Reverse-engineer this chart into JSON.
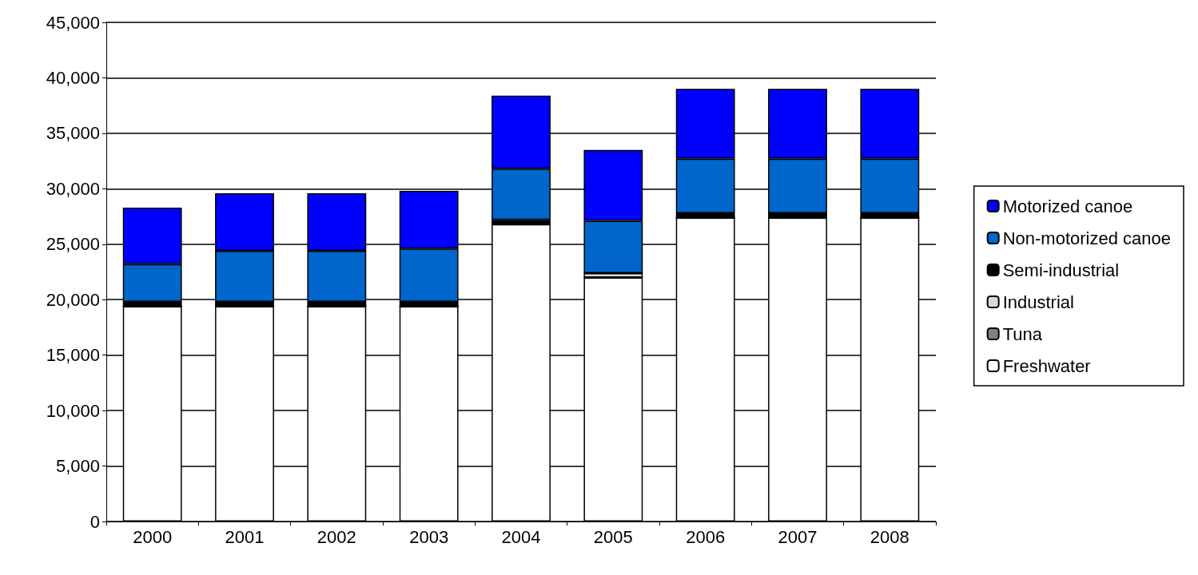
{
  "chart_data": {
    "type": "bar",
    "stacked": true,
    "categories": [
      "2000",
      "2001",
      "2002",
      "2003",
      "2004",
      "2005",
      "2006",
      "2007",
      "2008"
    ],
    "series": [
      {
        "name": "Freshwater",
        "color": "#ffffff",
        "values": [
          19400,
          19400,
          19400,
          19400,
          26800,
          22000,
          27400,
          27400,
          27400
        ]
      },
      {
        "name": "Tuna",
        "color": "#808080",
        "values": [
          0,
          0,
          0,
          0,
          0,
          0,
          0,
          0,
          0
        ]
      },
      {
        "name": "Industrial",
        "color": "#d9d9d9",
        "values": [
          0,
          0,
          0,
          0,
          0,
          400,
          0,
          0,
          0
        ]
      },
      {
        "name": "Semi-industrial",
        "color": "#000000",
        "values": [
          400,
          400,
          400,
          400,
          400,
          0,
          400,
          400,
          400
        ]
      },
      {
        "name": "Non-motorized canoe",
        "color": "#0066cc",
        "values": [
          3400,
          4600,
          4600,
          4800,
          4600,
          4700,
          4900,
          4900,
          4900
        ]
      },
      {
        "name": "Motorized canoe",
        "color": "#0000ff",
        "values": [
          5100,
          5200,
          5200,
          5200,
          6600,
          6400,
          6300,
          6300,
          6300
        ]
      }
    ],
    "ylim": [
      0,
      45000
    ],
    "yticks": [
      0,
      {
        "value": 5000,
        "label": "5,000"
      },
      {
        "value": 10000,
        "label": "10,000"
      },
      {
        "value": 15000,
        "label": "15,000"
      },
      {
        "value": 20000,
        "label": "20,000"
      },
      {
        "value": 25000,
        "label": "25,000"
      },
      {
        "value": 30000,
        "label": "30,000"
      },
      {
        "value": 35000,
        "label": "35,000"
      },
      {
        "value": 40000,
        "label": "40,000"
      },
      {
        "value": 45000,
        "label": "45,000"
      }
    ],
    "grid": "y",
    "legend": "right"
  }
}
